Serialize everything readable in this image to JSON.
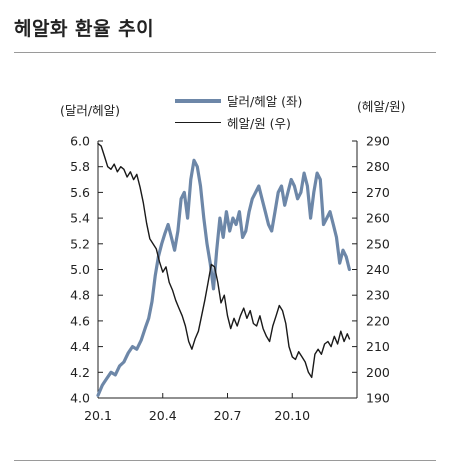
{
  "page": {
    "title": "헤알화 환율 추이"
  },
  "chart_data": {
    "type": "line",
    "left_unit": "(달러/헤알)",
    "right_unit": "(헤알/원)",
    "x_ticks": [
      "20.1",
      "20.4",
      "20.7",
      "20.10"
    ],
    "x_tick_positions": [
      0,
      3,
      6,
      9
    ],
    "x_range": [
      0,
      12
    ],
    "left_axis": {
      "ylim": [
        4.0,
        6.0
      ],
      "ticks": [
        "4.0",
        "4.2",
        "4.4",
        "4.6",
        "4.8",
        "5.0",
        "5.2",
        "5.4",
        "5.6",
        "5.8",
        "6.0"
      ]
    },
    "right_axis": {
      "ylim": [
        190,
        290
      ],
      "ticks": [
        "190",
        "200",
        "210",
        "220",
        "230",
        "240",
        "250",
        "260",
        "270",
        "280",
        "290"
      ]
    },
    "series": [
      {
        "name": "달러/헤알 (좌)",
        "axis": "left",
        "color": "#6d87a8",
        "points": [
          [
            0.0,
            4.02
          ],
          [
            0.2,
            4.1
          ],
          [
            0.4,
            4.15
          ],
          [
            0.6,
            4.2
          ],
          [
            0.8,
            4.18
          ],
          [
            1.0,
            4.25
          ],
          [
            1.2,
            4.28
          ],
          [
            1.4,
            4.35
          ],
          [
            1.6,
            4.4
          ],
          [
            1.8,
            4.38
          ],
          [
            2.0,
            4.45
          ],
          [
            2.2,
            4.55
          ],
          [
            2.35,
            4.62
          ],
          [
            2.5,
            4.75
          ],
          [
            2.65,
            4.95
          ],
          [
            2.8,
            5.1
          ],
          [
            2.95,
            5.2
          ],
          [
            3.1,
            5.28
          ],
          [
            3.25,
            5.35
          ],
          [
            3.4,
            5.25
          ],
          [
            3.55,
            5.15
          ],
          [
            3.7,
            5.3
          ],
          [
            3.85,
            5.55
          ],
          [
            4.0,
            5.6
          ],
          [
            4.15,
            5.4
          ],
          [
            4.3,
            5.7
          ],
          [
            4.45,
            5.85
          ],
          [
            4.6,
            5.8
          ],
          [
            4.75,
            5.65
          ],
          [
            4.9,
            5.4
          ],
          [
            5.05,
            5.2
          ],
          [
            5.2,
            5.05
          ],
          [
            5.35,
            4.85
          ],
          [
            5.5,
            5.15
          ],
          [
            5.65,
            5.4
          ],
          [
            5.8,
            5.25
          ],
          [
            5.95,
            5.45
          ],
          [
            6.1,
            5.3
          ],
          [
            6.25,
            5.4
          ],
          [
            6.4,
            5.35
          ],
          [
            6.55,
            5.45
          ],
          [
            6.7,
            5.25
          ],
          [
            6.85,
            5.3
          ],
          [
            7.0,
            5.45
          ],
          [
            7.15,
            5.55
          ],
          [
            7.3,
            5.6
          ],
          [
            7.45,
            5.65
          ],
          [
            7.6,
            5.55
          ],
          [
            7.75,
            5.45
          ],
          [
            7.9,
            5.35
          ],
          [
            8.05,
            5.3
          ],
          [
            8.2,
            5.45
          ],
          [
            8.35,
            5.6
          ],
          [
            8.5,
            5.65
          ],
          [
            8.65,
            5.5
          ],
          [
            8.8,
            5.6
          ],
          [
            8.95,
            5.7
          ],
          [
            9.1,
            5.65
          ],
          [
            9.25,
            5.55
          ],
          [
            9.4,
            5.6
          ],
          [
            9.55,
            5.75
          ],
          [
            9.7,
            5.65
          ],
          [
            9.85,
            5.4
          ],
          [
            10.0,
            5.6
          ],
          [
            10.15,
            5.75
          ],
          [
            10.3,
            5.7
          ],
          [
            10.45,
            5.35
          ],
          [
            10.6,
            5.4
          ],
          [
            10.75,
            5.45
          ],
          [
            10.9,
            5.35
          ],
          [
            11.05,
            5.25
          ],
          [
            11.2,
            5.05
          ],
          [
            11.35,
            5.15
          ],
          [
            11.5,
            5.1
          ],
          [
            11.65,
            5.0
          ]
        ]
      },
      {
        "name": "헤알/원 (우)",
        "axis": "right",
        "color": "#1a1a1a",
        "points": [
          [
            0.0,
            289
          ],
          [
            0.15,
            288
          ],
          [
            0.3,
            284
          ],
          [
            0.45,
            280
          ],
          [
            0.6,
            279
          ],
          [
            0.75,
            281
          ],
          [
            0.9,
            278
          ],
          [
            1.05,
            280
          ],
          [
            1.2,
            279
          ],
          [
            1.35,
            276
          ],
          [
            1.5,
            278
          ],
          [
            1.65,
            275
          ],
          [
            1.8,
            277
          ],
          [
            1.95,
            272
          ],
          [
            2.1,
            266
          ],
          [
            2.25,
            258
          ],
          [
            2.4,
            252
          ],
          [
            2.55,
            250
          ],
          [
            2.7,
            248
          ],
          [
            2.85,
            243
          ],
          [
            3.0,
            239
          ],
          [
            3.15,
            241
          ],
          [
            3.3,
            235
          ],
          [
            3.45,
            232
          ],
          [
            3.6,
            228
          ],
          [
            3.75,
            225
          ],
          [
            3.9,
            222
          ],
          [
            4.05,
            218
          ],
          [
            4.2,
            212
          ],
          [
            4.35,
            209
          ],
          [
            4.5,
            213
          ],
          [
            4.65,
            216
          ],
          [
            4.8,
            222
          ],
          [
            4.95,
            228
          ],
          [
            5.1,
            235
          ],
          [
            5.25,
            242
          ],
          [
            5.4,
            241
          ],
          [
            5.55,
            235
          ],
          [
            5.7,
            227
          ],
          [
            5.85,
            230
          ],
          [
            6.0,
            222
          ],
          [
            6.15,
            217
          ],
          [
            6.3,
            221
          ],
          [
            6.45,
            218
          ],
          [
            6.6,
            222
          ],
          [
            6.75,
            225
          ],
          [
            6.9,
            221
          ],
          [
            7.05,
            224
          ],
          [
            7.2,
            219
          ],
          [
            7.35,
            218
          ],
          [
            7.5,
            222
          ],
          [
            7.65,
            217
          ],
          [
            7.8,
            214
          ],
          [
            7.95,
            212
          ],
          [
            8.1,
            218
          ],
          [
            8.25,
            222
          ],
          [
            8.4,
            226
          ],
          [
            8.55,
            224
          ],
          [
            8.7,
            219
          ],
          [
            8.85,
            210
          ],
          [
            9.0,
            206
          ],
          [
            9.15,
            205
          ],
          [
            9.3,
            208
          ],
          [
            9.45,
            206
          ],
          [
            9.6,
            204
          ],
          [
            9.75,
            200
          ],
          [
            9.9,
            198
          ],
          [
            10.05,
            207
          ],
          [
            10.2,
            209
          ],
          [
            10.35,
            207
          ],
          [
            10.5,
            211
          ],
          [
            10.65,
            212
          ],
          [
            10.8,
            210
          ],
          [
            10.95,
            214
          ],
          [
            11.1,
            211
          ],
          [
            11.25,
            216
          ],
          [
            11.4,
            212
          ],
          [
            11.55,
            215
          ],
          [
            11.65,
            213
          ]
        ]
      }
    ]
  }
}
